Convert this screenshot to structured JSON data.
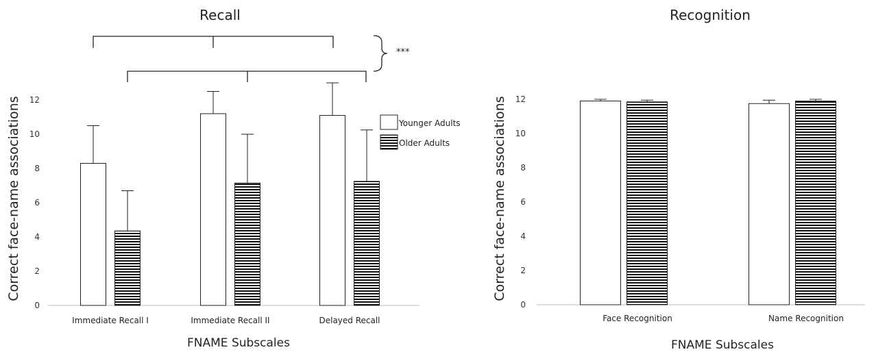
{
  "chart_data": [
    {
      "type": "bar",
      "title": "Recall",
      "xlabel": "FNAME Subscales",
      "ylabel": "Correct face-name associations",
      "ylim": [
        0,
        12
      ],
      "yticks": [
        0,
        2,
        4,
        6,
        8,
        10,
        12
      ],
      "categories": [
        "Immediate Recall I",
        "Immediate Recall II",
        "Delayed Recall"
      ],
      "series": [
        {
          "name": "Younger Adults",
          "pattern": "plain",
          "values": [
            8.3,
            11.2,
            11.1
          ],
          "errors": [
            2.2,
            1.3,
            1.9
          ]
        },
        {
          "name": "Older Adults",
          "pattern": "horizontal-stripes",
          "values": [
            4.35,
            7.15,
            7.25
          ],
          "errors": [
            2.35,
            2.85,
            3.0
          ]
        }
      ],
      "legend": "right",
      "significance": "***"
    },
    {
      "type": "bar",
      "title": "Recognition",
      "xlabel": "FNAME Subscales",
      "ylabel": "Correct face-name associations",
      "ylim": [
        0,
        12
      ],
      "yticks": [
        0,
        2,
        4,
        6,
        8,
        10,
        12
      ],
      "categories": [
        "Face Recognition",
        "Name Recognition"
      ],
      "series": [
        {
          "name": "Younger Adults",
          "pattern": "plain",
          "values": [
            11.9,
            11.75
          ],
          "errors": [
            0.1,
            0.2
          ]
        },
        {
          "name": "Older Adults",
          "pattern": "horizontal-stripes",
          "values": [
            11.85,
            11.9
          ],
          "errors": [
            0.1,
            0.1
          ]
        }
      ]
    }
  ]
}
